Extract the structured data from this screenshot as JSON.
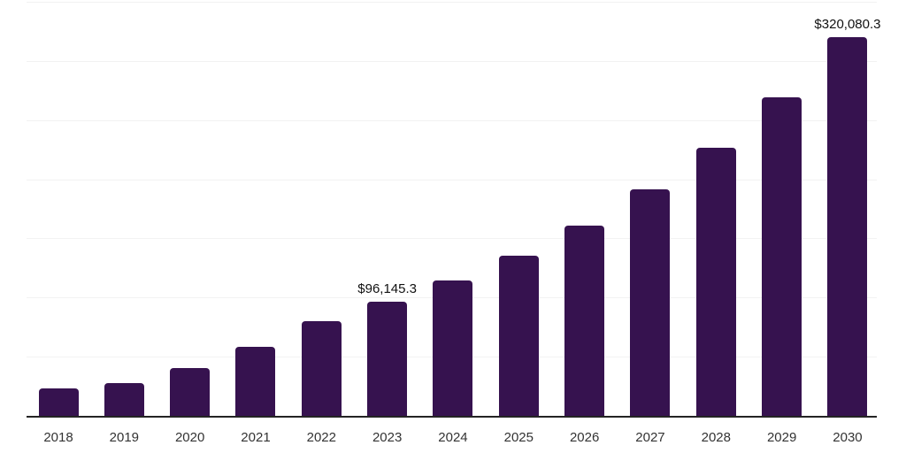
{
  "chart": {
    "colors": {
      "bar": "#36124F",
      "grid": "#f2f2f2",
      "axis": "#242424",
      "value_label": "#111111",
      "tick_label": "#333333",
      "background": "#ffffff"
    }
  },
  "chart_data": {
    "type": "bar",
    "title": "",
    "xlabel": "",
    "ylabel": "",
    "categories": [
      "2018",
      "2019",
      "2020",
      "2021",
      "2022",
      "2023",
      "2024",
      "2025",
      "2026",
      "2027",
      "2028",
      "2029",
      "2030"
    ],
    "values": [
      23300,
      27600,
      40300,
      58000,
      80000,
      96145.3,
      114200,
      135600,
      161000,
      191100,
      226900,
      269500,
      320080.3
    ],
    "point_labels": {
      "2023": "$96,145.3",
      "2030": "$320,080.3"
    },
    "ylim": [
      0,
      350000
    ],
    "grid_step": 50000,
    "grid_visible": true,
    "y_tick_labels_visible": false,
    "legend_position": "none",
    "currency": "USD"
  }
}
